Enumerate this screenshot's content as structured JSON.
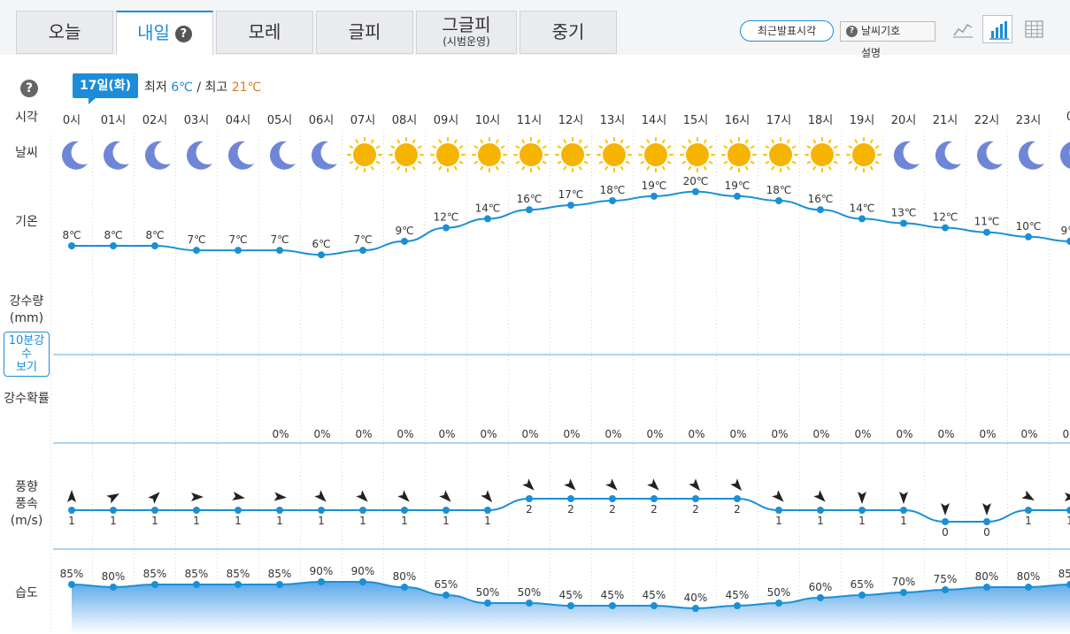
{
  "tabs": [
    {
      "label": "오늘",
      "sub": ""
    },
    {
      "label": "내일",
      "sub": "",
      "active": true
    },
    {
      "label": "모레",
      "sub": ""
    },
    {
      "label": "글피",
      "sub": ""
    },
    {
      "label": "그글피",
      "sub": "(시범운영)"
    },
    {
      "label": "중기",
      "sub": ""
    }
  ],
  "help_icon": "?",
  "recent_button": "최근발표시각",
  "legend_button": "날씨기호",
  "legend_sub": "설명",
  "view_icons": [
    "line-chart-icon",
    "bar-chart-icon",
    "table-icon"
  ],
  "date_badge": "17일(화)",
  "min_label": "최저",
  "min_temp": "6℃",
  "max_label": "최고",
  "max_temp": "21℃",
  "separator": "/",
  "row_labels": {
    "time": "시각",
    "weather": "날씨",
    "temp": "기온",
    "precip_l1": "강수량",
    "precip_l2": "(mm)",
    "rain10_l1": "10분강",
    "rain10_l2": "수",
    "rain10_l3": "보기",
    "pop": "강수확률",
    "wind_l1": "풍향",
    "wind_l2": "풍속",
    "wind_l3": "(m/s)",
    "humidity": "습도"
  },
  "hours": [
    "0시",
    "01시",
    "02시",
    "03시",
    "04시",
    "05시",
    "06시",
    "07시",
    "08시",
    "09시",
    "10시",
    "11시",
    "12시",
    "13시",
    "14시",
    "15시",
    "16시",
    "17시",
    "18시",
    "19시",
    "20시",
    "21시",
    "22시",
    "23시",
    "0"
  ],
  "weather": [
    "moon",
    "moon",
    "moon",
    "moon",
    "moon",
    "moon",
    "moon",
    "sun",
    "sun",
    "sun",
    "sun",
    "sun",
    "sun",
    "sun",
    "sun",
    "sun",
    "sun",
    "sun",
    "sun",
    "sun",
    "moon",
    "moon",
    "moon",
    "moon",
    "moon"
  ],
  "temps": [
    8,
    8,
    8,
    7,
    7,
    7,
    6,
    7,
    9,
    12,
    14,
    16,
    17,
    18,
    19,
    20,
    19,
    18,
    16,
    14,
    13,
    12,
    11,
    10,
    9
  ],
  "temp_unit": "℃",
  "pop": [
    null,
    null,
    null,
    null,
    null,
    0,
    0,
    0,
    0,
    0,
    0,
    0,
    0,
    0,
    0,
    0,
    0,
    0,
    0,
    0,
    0,
    0,
    0,
    0,
    0
  ],
  "pop_unit": "%",
  "wind_speed": [
    1,
    1,
    1,
    1,
    1,
    1,
    1,
    1,
    1,
    1,
    1,
    2,
    2,
    2,
    2,
    2,
    2,
    1,
    1,
    1,
    1,
    0,
    0,
    1,
    1
  ],
  "wind_dir_deg": [
    0,
    60,
    45,
    90,
    100,
    95,
    135,
    135,
    135,
    135,
    140,
    135,
    135,
    135,
    135,
    140,
    140,
    135,
    135,
    180,
    180,
    180,
    180,
    120,
    90
  ],
  "humidity": [
    85,
    80,
    85,
    85,
    85,
    85,
    90,
    90,
    80,
    65,
    50,
    50,
    45,
    45,
    45,
    40,
    45,
    50,
    60,
    65,
    70,
    75,
    80,
    80,
    85
  ],
  "colors": {
    "accent": "#1c8cd9",
    "warm": "#e07a1f",
    "sun": "#f6b400",
    "moon": "#6f86d6",
    "line": "#1a8fd6"
  }
}
